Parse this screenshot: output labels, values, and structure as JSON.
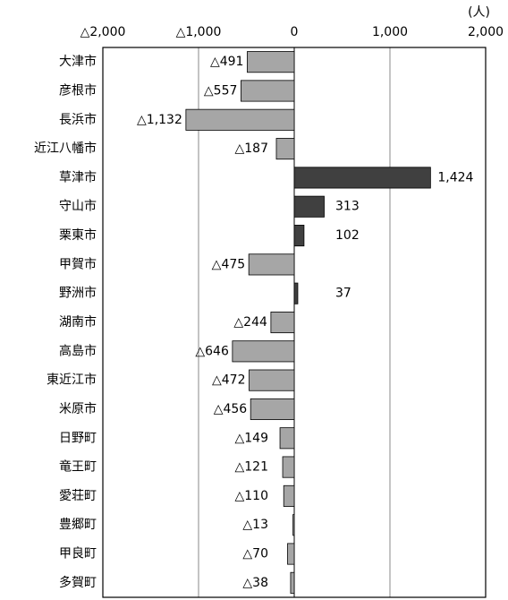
{
  "chart_data": {
    "type": "bar",
    "orientation": "horizontal",
    "unit_label": "(人)",
    "categories": [
      "大津市",
      "彦根市",
      "長浜市",
      "近江八幡市",
      "草津市",
      "守山市",
      "栗東市",
      "甲賀市",
      "野洲市",
      "湖南市",
      "高島市",
      "東近江市",
      "米原市",
      "日野町",
      "竜王町",
      "愛荘町",
      "豊郷町",
      "甲良町",
      "多賀町"
    ],
    "values": [
      -491,
      -557,
      -1132,
      -187,
      1424,
      313,
      102,
      -475,
      37,
      -244,
      -646,
      -472,
      -456,
      -149,
      -121,
      -110,
      -13,
      -70,
      -38
    ],
    "value_labels": [
      "△491",
      "△557",
      "△1,132",
      "△187",
      "1,424",
      "313",
      "102",
      "△475",
      "37",
      "△244",
      "△646",
      "△472",
      "△456",
      "△149",
      "△121",
      "△110",
      "△13",
      "△70",
      "△38"
    ],
    "color_negative": "#a6a6a6",
    "color_positive": "#404040",
    "xlim": [
      -2000,
      2000
    ],
    "xticks": [
      {
        "value": -2000,
        "label": "△2,000"
      },
      {
        "value": -1000,
        "label": "△1,000"
      },
      0,
      {
        "value": 1000,
        "label": "1,000"
      },
      {
        "value": 2000,
        "label": "2,000"
      }
    ],
    "grid": true
  }
}
